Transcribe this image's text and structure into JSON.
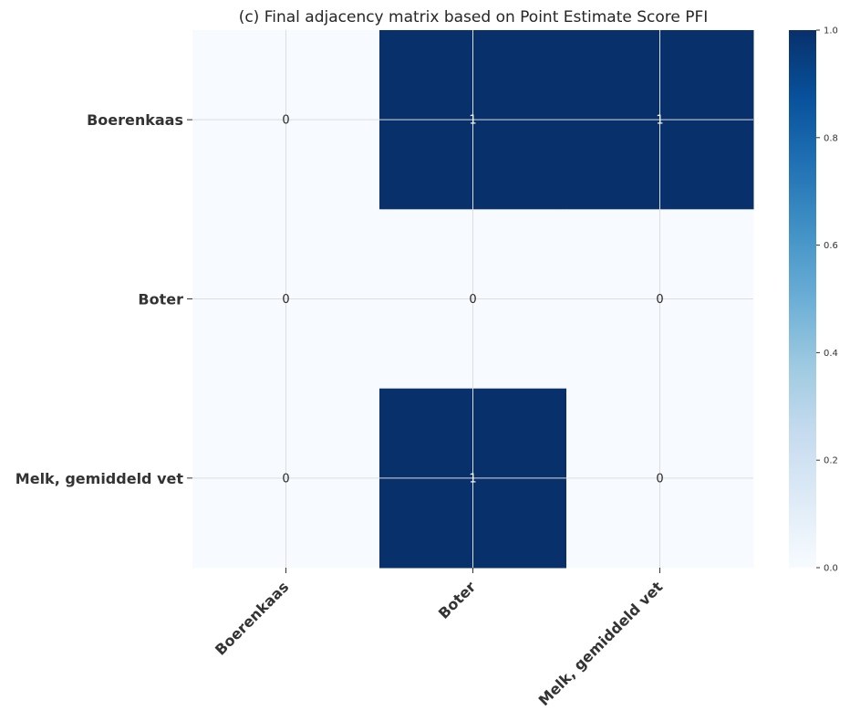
{
  "chart_data": {
    "type": "heatmap",
    "title": "(c) Final adjacency matrix based on Point Estimate Score PFI",
    "rows": [
      "Boerenkaas",
      "Boter",
      "Melk, gemiddeld vet"
    ],
    "columns": [
      "Boerenkaas",
      "Boter",
      "Melk, gemiddeld vet"
    ],
    "values": [
      [
        0,
        1,
        1
      ],
      [
        0,
        0,
        0
      ],
      [
        0,
        1,
        0
      ]
    ],
    "annotations": [
      [
        "0",
        "1",
        "1"
      ],
      [
        "0",
        "0",
        "0"
      ],
      [
        "0",
        "1",
        "0"
      ]
    ],
    "colormap": "Blues",
    "colorbar": {
      "range": [
        0.0,
        1.0
      ],
      "ticks": [
        "0.0",
        "0.2",
        "0.4",
        "0.6",
        "0.8",
        "1.0"
      ]
    },
    "grid": true,
    "colors": {
      "low": "#f7fbff",
      "high": "#08306b",
      "grid": "#dddddd"
    }
  }
}
